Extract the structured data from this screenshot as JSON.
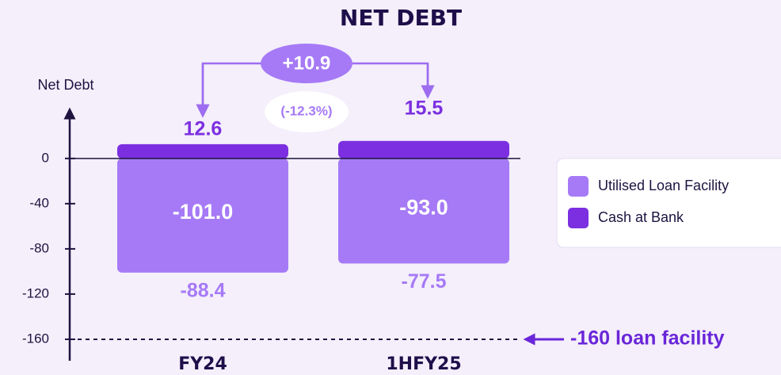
{
  "chart_data": {
    "type": "bar",
    "title": "NET DEBT",
    "y_label": "Net Debt",
    "categories": [
      "FY24",
      "1HFY25"
    ],
    "series": [
      {
        "name": "Utilised Loan Facility",
        "color": "#a67af6",
        "values": [
          -101.0,
          -93.0
        ],
        "value_labels": [
          "-101.0",
          "-93.0"
        ]
      },
      {
        "name": "Cash at Bank",
        "color": "#7b2fe0",
        "values": [
          12.6,
          15.5
        ]
      }
    ],
    "net_debt": [
      -88.4,
      -77.5
    ],
    "change": "+10.9",
    "change_pct": "(-12.3%)",
    "loan_facility": {
      "value": -160,
      "label": "-160 loan facility"
    },
    "ylim": [
      -178,
      42
    ],
    "yticks": [
      0,
      -40,
      -80,
      -120,
      -160
    ]
  }
}
